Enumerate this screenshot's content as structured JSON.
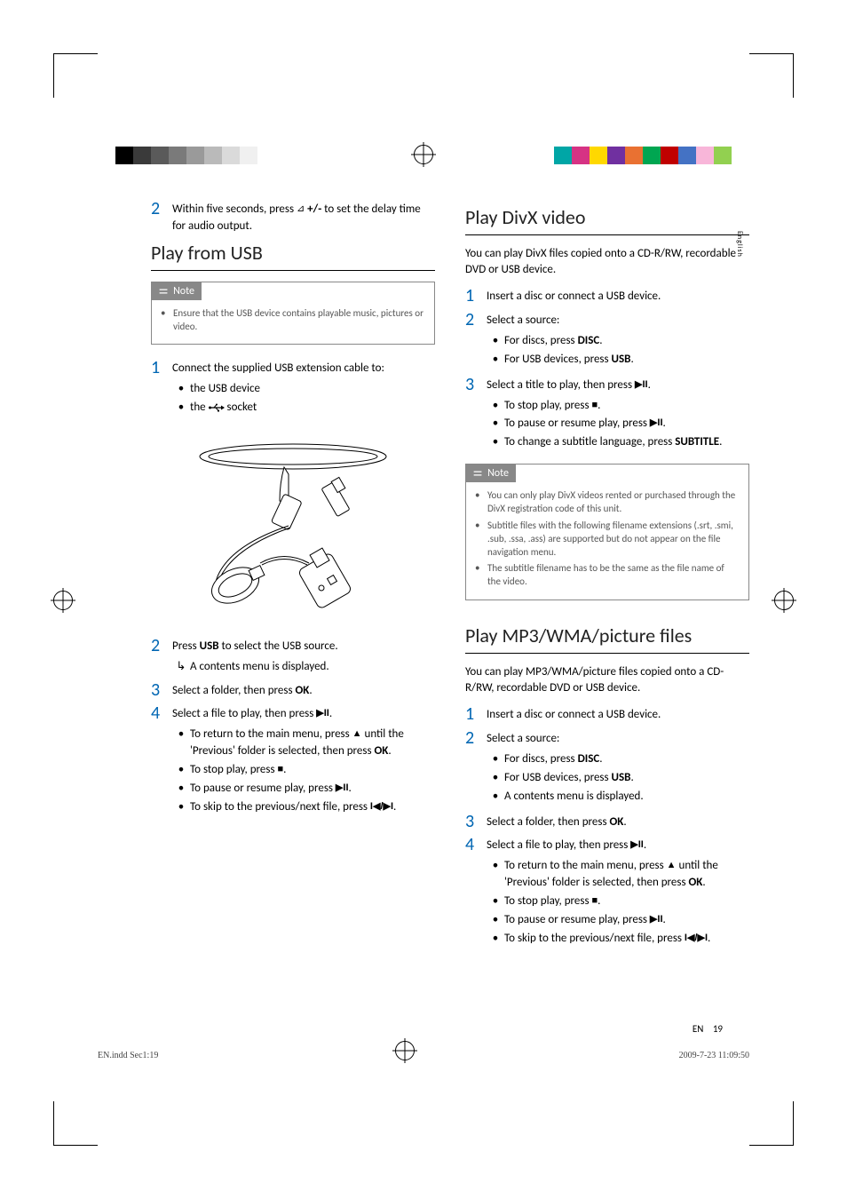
{
  "crop_colorbar_left": [
    "#000000",
    "#3a3a3a",
    "#5a5a5a",
    "#7a7a7a",
    "#9a9a9a",
    "#bababa",
    "#dadada",
    "#f0f0f0"
  ],
  "crop_colorbar_right": [
    "#00a6a6",
    "#d63384",
    "#ffd800",
    "#7030a0",
    "#e97132",
    "#00a651",
    "#c00000",
    "#4472c4",
    "#f8b6d9",
    "#92d050"
  ],
  "sidebar": {
    "language": "English"
  },
  "prev_step": {
    "num": "2",
    "text_a": "Within five seconds, press ",
    "text_b": " +/- to set the delay time for audio output."
  },
  "s1": {
    "title": "Play from USB",
    "note_label": "Note",
    "note_items": [
      "Ensure that the USB device contains playable music, pictures or video."
    ],
    "steps": [
      {
        "num": "1",
        "text": "Connect the supplied USB extension cable to:",
        "subs": [
          {
            "pre": "the USB device",
            "icon": ""
          },
          {
            "pre": "the ",
            "icon": "usb",
            "post": " socket"
          }
        ]
      },
      {
        "num": "2",
        "text_a": "Press ",
        "bold": "USB",
        "text_b": " to select the USB source.",
        "result": "A contents menu is displayed."
      },
      {
        "num": "3",
        "text_a": "Select a folder, then press ",
        "bold": "OK",
        "text_b": "."
      },
      {
        "num": "4",
        "text": "Select a file to play, then press ",
        "icon": "playpause",
        "subs": [
          {
            "text_a": "To return to the main menu, press ",
            "icon": "up",
            "text_b": " until the 'Previous' folder is selected, then press ",
            "bold": "OK",
            "text_c": "."
          },
          {
            "text_a": "To stop play, press ",
            "icon": "stop",
            "text_b": "."
          },
          {
            "text_a": "To pause or resume play, press ",
            "icon": "playpause",
            "text_b": "."
          },
          {
            "text_a": "To skip to the previous/next file, press ",
            "icon": "prevnext",
            "text_b": "."
          }
        ]
      }
    ]
  },
  "s2": {
    "title": "Play DivX video",
    "intro": "You can play DivX files copied onto a CD-R/RW, recordable DVD or USB device.",
    "steps": [
      {
        "num": "1",
        "text": "Insert a disc or connect a USB device."
      },
      {
        "num": "2",
        "text": "Select a source:",
        "subs": [
          {
            "text_a": "For discs, press ",
            "bold": "DISC",
            "text_b": "."
          },
          {
            "text_a": "For USB devices, press ",
            "bold": "USB",
            "text_b": "."
          }
        ]
      },
      {
        "num": "3",
        "text": "Select a title to play, then press ",
        "icon": "playpause",
        "subs": [
          {
            "text_a": "To stop play, press ",
            "icon": "stop",
            "text_b": "."
          },
          {
            "text_a": "To pause or resume play, press ",
            "icon": "playpause",
            "text_b": "."
          },
          {
            "text_a": "To change a subtitle language, press ",
            "bold": "SUBTITLE",
            "text_b": "."
          }
        ]
      }
    ],
    "note_label": "Note",
    "note_items": [
      "You can only play DivX videos rented or purchased through the DivX registration code of this unit.",
      "Subtitle files with the following filename extensions (.srt, .smi, .sub, .ssa, .ass) are supported but do not appear on the file navigation menu.",
      "The subtitle filename has to be the same as the file name of the video."
    ]
  },
  "s3": {
    "title": "Play MP3/WMA/picture files",
    "intro": "You can play MP3/WMA/picture files copied onto a CD-R/RW, recordable DVD or USB device.",
    "steps": [
      {
        "num": "1",
        "text": "Insert a disc or connect a USB device."
      },
      {
        "num": "2",
        "text": "Select a source:",
        "subs": [
          {
            "text_a": "For discs, press ",
            "bold": "DISC",
            "text_b": "."
          },
          {
            "text_a": "For USB devices, press ",
            "bold": "USB",
            "text_b": "."
          },
          {
            "text_a": "A contents menu is displayed."
          }
        ]
      },
      {
        "num": "3",
        "text_a": "Select a folder, then press ",
        "bold": "OK",
        "text_b": "."
      },
      {
        "num": "4",
        "text": "Select a file to play, then press ",
        "icon": "playpause",
        "subs": [
          {
            "text_a": "To return to the main menu, press ",
            "icon": "up",
            "text_b": " until the 'Previous' folder is selected, then press ",
            "bold": "OK",
            "text_c": "."
          },
          {
            "text_a": "To stop play, press ",
            "icon": "stop",
            "text_b": "."
          },
          {
            "text_a": "To pause or resume play, press ",
            "icon": "playpause",
            "text_b": "."
          },
          {
            "text_a": "To skip to the previous/next file, press ",
            "icon": "prevnext",
            "text_b": "."
          }
        ]
      }
    ]
  },
  "footer": {
    "lang": "EN",
    "page": "19"
  },
  "imprint": {
    "file": "EN.indd   Sec1:19",
    "timestamp": "2009-7-23   11:09:50"
  },
  "icons": {
    "speaker": "⊿",
    "usb": "⬌",
    "playpause": "▶II",
    "stop": "■",
    "up": "▲",
    "prevnext": "I◀/▶I",
    "result_arrow": "↳"
  }
}
